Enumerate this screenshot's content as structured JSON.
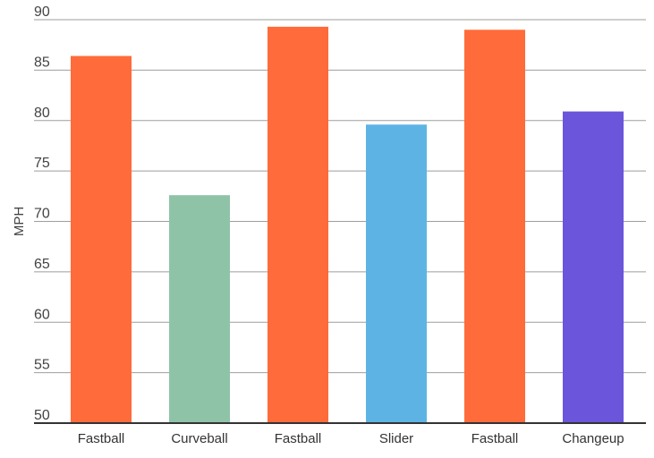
{
  "chart_data": {
    "type": "bar",
    "categories": [
      "Fastball",
      "Curveball",
      "Fastball",
      "Slider",
      "Fastball",
      "Changeup"
    ],
    "values": [
      86.4,
      72.6,
      89.3,
      79.6,
      89.0,
      80.9
    ],
    "colors": [
      "#ff6b3a",
      "#8fc3a8",
      "#ff6b3a",
      "#5db4e4",
      "#ff6b3a",
      "#6b55db"
    ],
    "ylabel": "MPH",
    "xlabel": "",
    "ylim": [
      50,
      90
    ],
    "yticks": [
      50,
      55,
      60,
      65,
      70,
      75,
      80,
      85,
      90
    ],
    "grid": true,
    "legend": "none"
  }
}
